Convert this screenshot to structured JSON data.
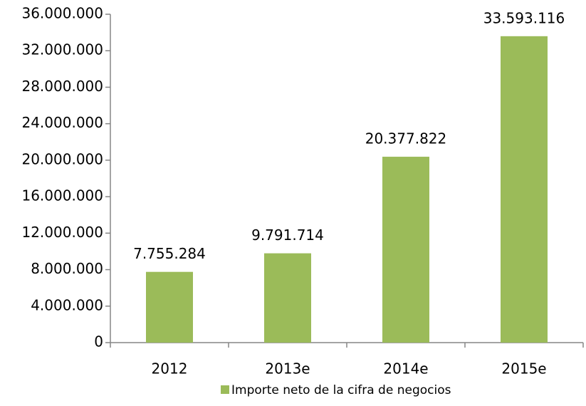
{
  "chart_data": {
    "type": "bar",
    "categories": [
      "2012",
      "2013e",
      "2014e",
      "2015e"
    ],
    "series": [
      {
        "name": "Importe neto de la cifra de negocios",
        "color": "#9bbb59",
        "values": [
          7755284,
          9791714,
          20377822,
          33593116
        ],
        "value_labels": [
          "7.755.284",
          "9.791.714",
          "20.377.822",
          "33.593.116"
        ]
      }
    ],
    "ylim": [
      0,
      36000000
    ],
    "yticks": [
      0,
      {
        "value": 4000000,
        "label": "4.000.000"
      },
      {
        "value": 8000000,
        "label": "8.000.000"
      },
      {
        "value": 12000000,
        "label": "12.000.000"
      },
      {
        "value": 16000000,
        "label": "16.000.000"
      },
      {
        "value": 20000000,
        "label": "20.000.000"
      },
      {
        "value": 24000000,
        "label": "24.000.000"
      },
      {
        "value": 28000000,
        "label": "28.000.000"
      },
      {
        "value": 32000000,
        "label": "32.000.000"
      },
      {
        "value": 36000000,
        "label": "36.000.000"
      }
    ],
    "grid": false,
    "legend": "bottom"
  }
}
